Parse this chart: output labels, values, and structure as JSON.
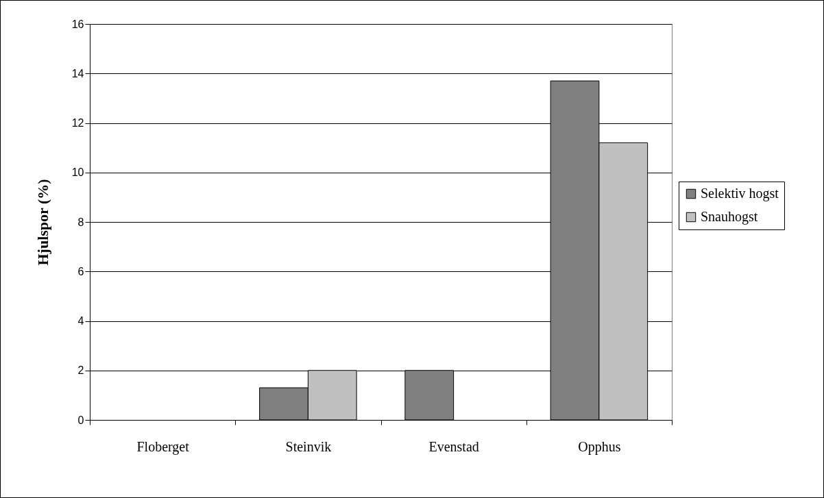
{
  "chart_data": {
    "type": "bar",
    "ylabel": "Hjulspor (%)",
    "categories": [
      "Floberget",
      "Steinvik",
      "Evenstad",
      "Opphus"
    ],
    "series": [
      {
        "name": "Selektiv hogst",
        "color": "#808080",
        "values": [
          null,
          1.3,
          2.0,
          13.7
        ]
      },
      {
        "name": "Snauhogst",
        "color": "#c0c0c0",
        "values": [
          null,
          2.0,
          null,
          11.2
        ]
      }
    ],
    "ylim": [
      0,
      16
    ],
    "yticks": [
      0,
      2,
      4,
      6,
      8,
      10,
      12,
      14,
      16
    ],
    "grid": "y",
    "legend": "right"
  }
}
